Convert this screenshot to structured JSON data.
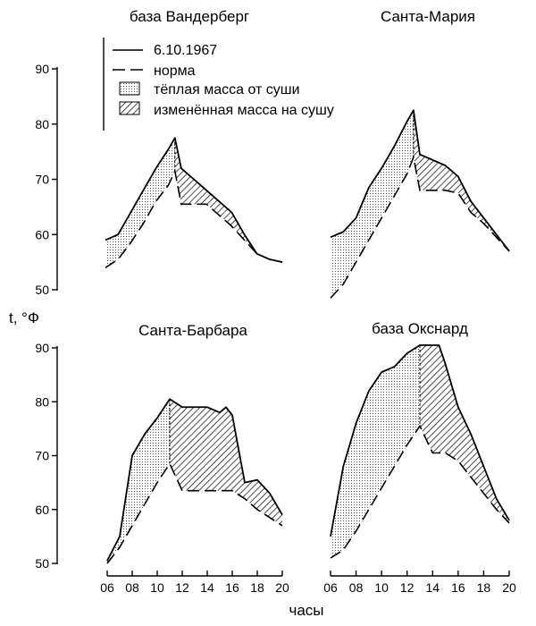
{
  "figure": {
    "y_unit_label": "t, °Ф",
    "x_label": "часы"
  },
  "legend": {
    "actual": "6.10.1967",
    "normal": "норма",
    "warm": "тёплая масса от суши",
    "modified": "изменённая масса на сушу"
  },
  "chart_data": [
    {
      "type": "line",
      "title": "база Вандерберг",
      "xlim": [
        6,
        20
      ],
      "ylim": [
        50,
        90
      ],
      "yticks": [
        50,
        60,
        70,
        80,
        90
      ],
      "xticks": [],
      "series": [
        {
          "name": "6.10.1967",
          "x": [
            6,
            7,
            8,
            9,
            10,
            11,
            11.5,
            12,
            13,
            14,
            15,
            16,
            17,
            18,
            19,
            20
          ],
          "y": [
            59,
            60,
            64,
            68,
            72,
            75.5,
            77.5,
            72,
            70,
            68,
            66,
            64,
            60,
            56.5,
            55.5,
            55
          ]
        },
        {
          "name": "норма",
          "x": [
            6,
            7,
            8,
            9,
            10,
            11,
            11.5,
            12,
            13,
            14,
            15,
            16,
            17,
            18,
            19,
            20
          ],
          "y": [
            54,
            55.5,
            58.5,
            62,
            66,
            69,
            71.5,
            65.5,
            65.5,
            65.5,
            63.5,
            61.5,
            59,
            56.5,
            55.5,
            55
          ]
        }
      ]
    },
    {
      "type": "line",
      "title": "Санта-Мария",
      "xlim": [
        6,
        20
      ],
      "ylim": [
        50,
        90
      ],
      "yticks": [],
      "xticks": [],
      "series": [
        {
          "name": "6.10.1967",
          "x": [
            6,
            7,
            8,
            9,
            10,
            11,
            12,
            12.5,
            13,
            14,
            15,
            16,
            17,
            18,
            19,
            20
          ],
          "y": [
            59.5,
            60.5,
            63,
            68.5,
            72,
            76,
            80.5,
            82.5,
            74.5,
            73.5,
            72.5,
            70.5,
            66,
            63,
            60,
            57
          ]
        },
        {
          "name": "норма",
          "x": [
            6,
            7,
            8,
            9,
            10,
            11,
            12,
            12.5,
            13,
            14,
            15,
            16,
            17,
            18,
            19,
            20
          ],
          "y": [
            48.5,
            51,
            55,
            59,
            63,
            67,
            71,
            74,
            68,
            68,
            68,
            67.5,
            64,
            62,
            59.5,
            57
          ]
        }
      ]
    },
    {
      "type": "line",
      "title": "Санта-Барбара",
      "xlim": [
        6,
        20
      ],
      "ylim": [
        50,
        90
      ],
      "yticks": [
        50,
        60,
        70,
        80,
        90
      ],
      "xticks": [
        6,
        8,
        10,
        12,
        14,
        16,
        18,
        20
      ],
      "series": [
        {
          "name": "6.10.1967",
          "x": [
            6,
            7,
            8,
            9,
            10,
            11,
            12,
            13,
            14,
            15,
            15.5,
            16,
            17,
            18,
            19,
            20
          ],
          "y": [
            50.5,
            55,
            70,
            74,
            77,
            80.5,
            79,
            79,
            79,
            78,
            79,
            77.5,
            65,
            65.5,
            63,
            59
          ]
        },
        {
          "name": "норма",
          "x": [
            6,
            7,
            8,
            9,
            10,
            11,
            12,
            13,
            14,
            15,
            15.5,
            16,
            17,
            18,
            19,
            20
          ],
          "y": [
            50,
            53,
            57,
            61,
            65,
            68.5,
            63.5,
            63.5,
            63.5,
            63.5,
            63.5,
            63.5,
            62,
            60,
            58.5,
            57
          ]
        }
      ]
    },
    {
      "type": "line",
      "title": "база Окснард",
      "xlim": [
        6,
        20
      ],
      "ylim": [
        50,
        90
      ],
      "yticks": [],
      "xticks": [
        6,
        8,
        10,
        12,
        14,
        16,
        18,
        20
      ],
      "series": [
        {
          "name": "6.10.1967",
          "x": [
            6,
            7,
            8,
            9,
            10,
            11,
            12,
            13,
            14,
            14.5,
            15,
            16,
            17,
            18,
            19,
            20
          ],
          "y": [
            55,
            68,
            76,
            82,
            85.5,
            86.5,
            89,
            90.5,
            90.5,
            90.5,
            87,
            79,
            74,
            68,
            62,
            58
          ]
        },
        {
          "name": "норма",
          "x": [
            6,
            7,
            8,
            9,
            10,
            11,
            12,
            13,
            14,
            14.5,
            15,
            16,
            17,
            18,
            19,
            20
          ],
          "y": [
            51,
            52.5,
            56,
            60,
            64,
            68,
            72,
            75.5,
            70.5,
            70.5,
            70.5,
            69,
            66,
            63,
            60,
            57.5
          ]
        }
      ]
    }
  ]
}
